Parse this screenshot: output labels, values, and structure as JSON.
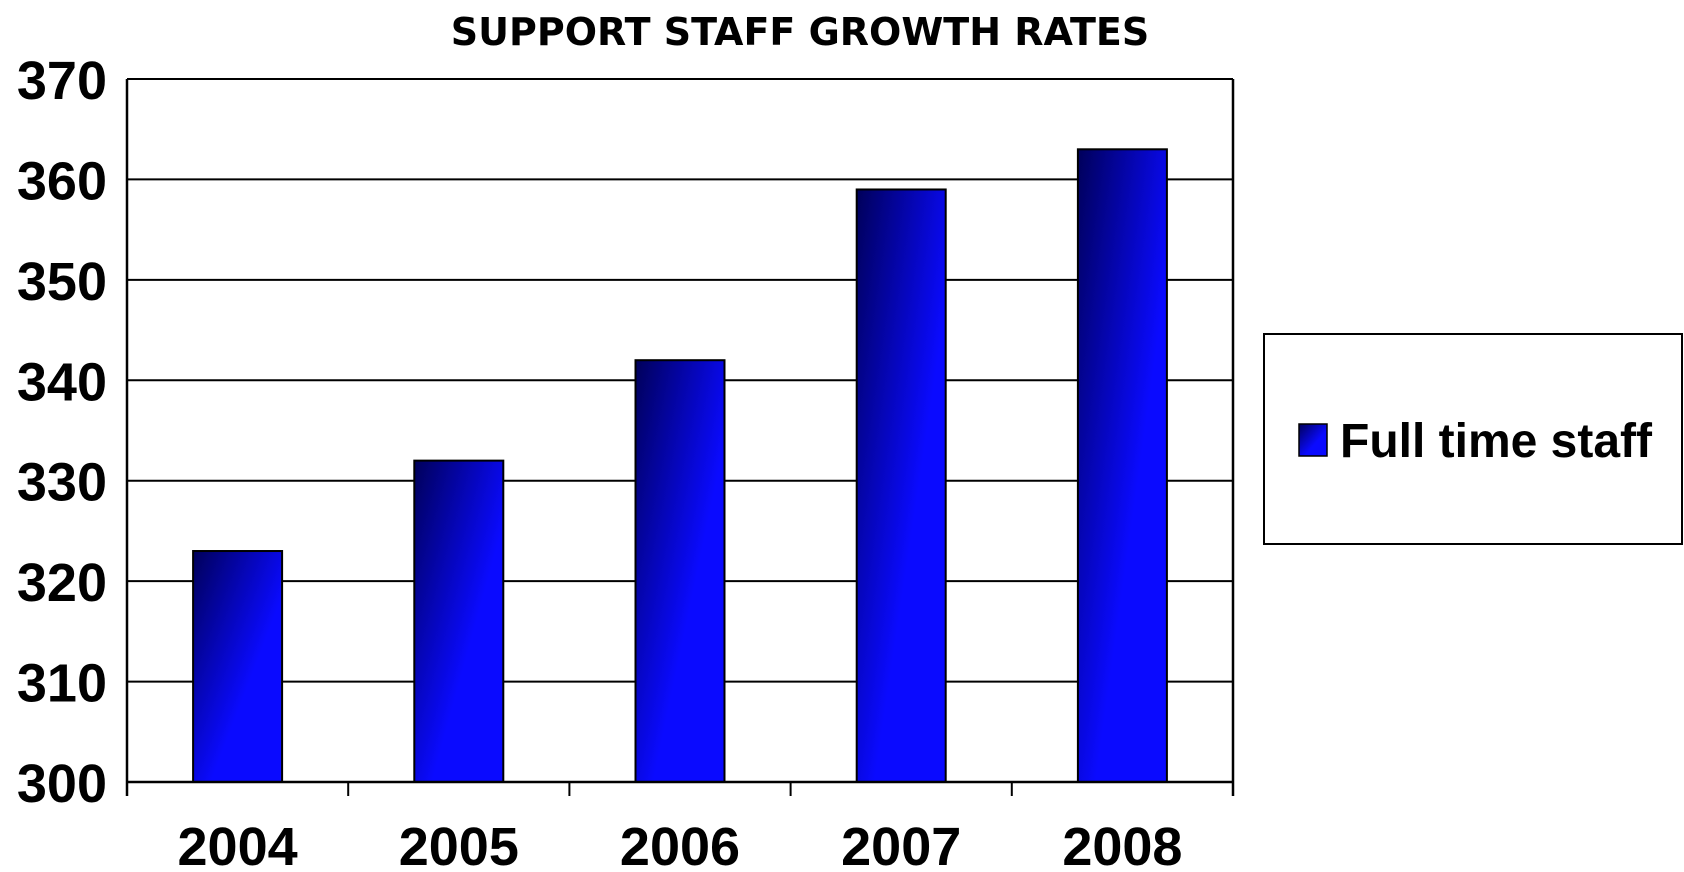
{
  "chart_data": {
    "type": "bar",
    "title": "SUPPORT STAFF GROWTH RATES",
    "xlabel": "",
    "ylabel": "",
    "categories": [
      "2004",
      "2005",
      "2006",
      "2007",
      "2008"
    ],
    "series": [
      {
        "name": "Full time staff",
        "values": [
          323,
          332,
          342,
          359,
          363
        ],
        "color": "#0000ee"
      }
    ],
    "ylim": [
      300,
      370
    ],
    "yticks": [
      300,
      310,
      320,
      330,
      340,
      350,
      360,
      370
    ],
    "grid": true,
    "legend_position": "right",
    "colors": {
      "bar_dark": "#00005a",
      "bar_light": "#0a0aff",
      "gridline": "#000000",
      "axis": "#000000"
    }
  }
}
